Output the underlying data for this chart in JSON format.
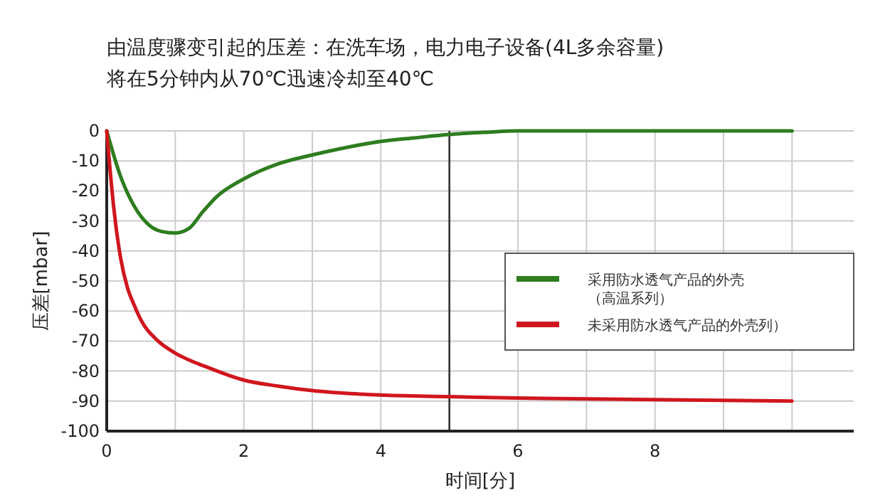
{
  "chart_data": {
    "type": "line",
    "title": "由温度骤变引起的压差：在洗车场，电力电子设备(4L多余容量)",
    "subtitle": "将在5分钟内从70℃迅速冷却至40℃",
    "xlabel": "时间[分]",
    "ylabel": "压差[mbar]",
    "xlim": [
      0,
      10.9
    ],
    "xticks": [
      0,
      {
        "value": 1,
        "label": null
      },
      2,
      {
        "value": 3,
        "label": null
      },
      4,
      {
        "value": 5,
        "label": null
      },
      6,
      {
        "value": 7,
        "label": null
      },
      8,
      {
        "value": 9,
        "label": null
      },
      {
        "value": 10,
        "label": null
      }
    ],
    "ylim": [
      -100,
      0
    ],
    "yticks": [
      -100,
      -90,
      -80,
      -70,
      -60,
      -50,
      -40,
      -30,
      -20,
      -10,
      0
    ],
    "grid": true,
    "legend": "right",
    "marker": "none",
    "line_style": "solid",
    "ref_lines": [
      {
        "axis": "x",
        "value": 5.0,
        "color": "#333333"
      }
    ],
    "series": [
      {
        "name": "采用防水透气产品的外壳（高温系列）",
        "color": "#2e7d1f",
        "x": [
          0,
          0.2,
          0.4,
          0.6,
          0.8,
          1,
          1.2,
          1.4,
          1.6,
          2,
          2.5,
          3,
          3.5,
          4,
          4.5,
          5,
          5.5,
          6,
          8,
          10
        ],
        "values": [
          0,
          -15,
          -25,
          -31,
          -33.5,
          -34,
          -32.5,
          -27,
          -22,
          -16,
          -11,
          -8,
          -5.5,
          -3.5,
          -2.3,
          -1.2,
          -0.5,
          0,
          0,
          0
        ]
      },
      {
        "name": "未采用防水透气产品的外壳列）",
        "color": "#d0161e",
        "x": [
          0,
          0.1,
          0.2,
          0.3,
          0.4,
          0.5,
          0.75,
          1,
          1.5,
          2,
          2.5,
          3,
          4,
          5,
          6,
          8,
          10
        ],
        "values": [
          0,
          -25,
          -42,
          -52,
          -58,
          -63,
          -70,
          -74,
          -79,
          -83,
          -85,
          -86.5,
          -88,
          -88.5,
          -89,
          -89.5,
          -90
        ]
      }
    ]
  }
}
